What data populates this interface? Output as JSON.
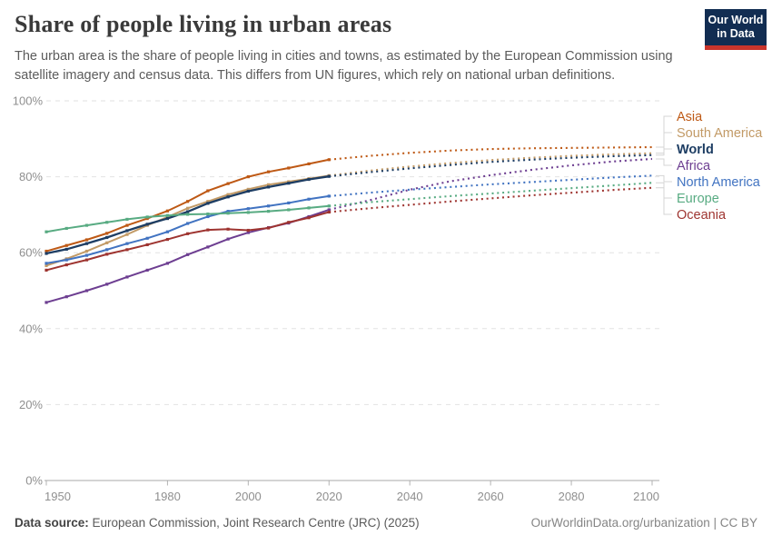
{
  "header": {
    "title": "Share of people living in urban areas",
    "subtitle": "The urban area is the share of people living in cities and towns, as estimated by the European Commission using\nsatellite imagery and census data. This differs from UN figures, which rely on national urban definitions."
  },
  "logo": {
    "line1": "Our World",
    "line2": "in Data",
    "bg_color": "#122d52",
    "bar_color": "#c9352c"
  },
  "footer": {
    "source_label": "Data source:",
    "source_text": " European Commission, Joint Research Centre (JRC) (2025)",
    "right": "OurWorldinData.org/urbanization | CC BY"
  },
  "chart_data": {
    "type": "line",
    "title": "Share of people living in urban areas",
    "ylabel": "",
    "xlabel": "",
    "ylim": [
      0,
      100
    ],
    "xlim": [
      1950,
      2100
    ],
    "grid": "horizontal-dashed",
    "legend_position": "right",
    "projection_style": "dotted-after-2020",
    "yticks": [
      0,
      20,
      40,
      60,
      80,
      100
    ],
    "ytick_labels": [
      "0%",
      "20%",
      "40%",
      "60%",
      "80%",
      "100%"
    ],
    "xticks": [
      1950,
      1980,
      2000,
      2020,
      2040,
      2060,
      2080,
      2100
    ],
    "years_historical": [
      1950,
      1955,
      1960,
      1965,
      1970,
      1975,
      1980,
      1985,
      1990,
      1995,
      2000,
      2005,
      2010,
      2015,
      2020
    ],
    "years_projection": [
      2020,
      2030,
      2040,
      2050,
      2060,
      2070,
      2080,
      2090,
      2100
    ],
    "series": [
      {
        "name": "Asia",
        "color": "#be5915",
        "historical": [
          60.4,
          61.9,
          63.4,
          65.1,
          67.2,
          69.0,
          71.0,
          73.5,
          76.3,
          78.2,
          80.0,
          81.3,
          82.3,
          83.4,
          84.5
        ],
        "projection": [
          84.5,
          85.5,
          86.3,
          86.9,
          87.3,
          87.5,
          87.6,
          87.7,
          87.8
        ]
      },
      {
        "name": "South America",
        "color": "#c29a66",
        "historical": [
          56.6,
          58.4,
          60.4,
          62.6,
          64.8,
          67.2,
          69.4,
          71.7,
          73.5,
          75.3,
          76.7,
          77.9,
          78.7,
          79.5,
          80.3
        ],
        "projection": [
          80.3,
          81.6,
          82.7,
          83.6,
          84.4,
          85.0,
          85.5,
          85.9,
          86.2
        ]
      },
      {
        "name": "World",
        "color": "#1d3d63",
        "bold": true,
        "historical": [
          59.8,
          60.9,
          62.4,
          64.0,
          65.8,
          67.5,
          69.0,
          70.8,
          73.0,
          74.7,
          76.2,
          77.3,
          78.3,
          79.3,
          80.1
        ],
        "projection": [
          80.1,
          81.2,
          82.2,
          83.1,
          83.9,
          84.5,
          85.0,
          85.4,
          85.7
        ]
      },
      {
        "name": "Africa",
        "color": "#6d3e91",
        "historical": [
          46.9,
          48.4,
          50.0,
          51.7,
          53.6,
          55.4,
          57.2,
          59.5,
          61.5,
          63.6,
          65.3,
          66.6,
          67.8,
          69.5,
          71.3
        ],
        "projection": [
          71.3,
          73.8,
          76.6,
          78.8,
          80.4,
          81.8,
          83.0,
          84.0,
          84.7
        ]
      },
      {
        "name": "North America",
        "color": "#4173c1",
        "historical": [
          57.2,
          58.1,
          59.3,
          60.8,
          62.4,
          63.8,
          65.5,
          67.7,
          69.5,
          70.9,
          71.6,
          72.3,
          73.1,
          74.1,
          74.9
        ],
        "projection": [
          74.9,
          75.8,
          76.6,
          77.3,
          78.0,
          78.6,
          79.2,
          79.8,
          80.3
        ]
      },
      {
        "name": "Europe",
        "color": "#58ab82",
        "historical": [
          65.5,
          66.4,
          67.2,
          68.0,
          68.8,
          69.4,
          69.8,
          70.1,
          70.2,
          70.4,
          70.6,
          70.9,
          71.3,
          71.8,
          72.3
        ],
        "projection": [
          72.3,
          73.3,
          74.1,
          74.9,
          75.6,
          76.3,
          77.0,
          77.7,
          78.4
        ]
      },
      {
        "name": "Oceania",
        "color": "#9e3430",
        "historical": [
          55.4,
          56.8,
          58.1,
          59.6,
          60.8,
          62.1,
          63.5,
          65.0,
          66.0,
          66.2,
          65.9,
          66.5,
          68.0,
          69.2,
          70.7
        ],
        "projection": [
          70.7,
          71.7,
          72.6,
          73.5,
          74.3,
          75.1,
          75.8,
          76.5,
          77.1
        ]
      }
    ]
  }
}
